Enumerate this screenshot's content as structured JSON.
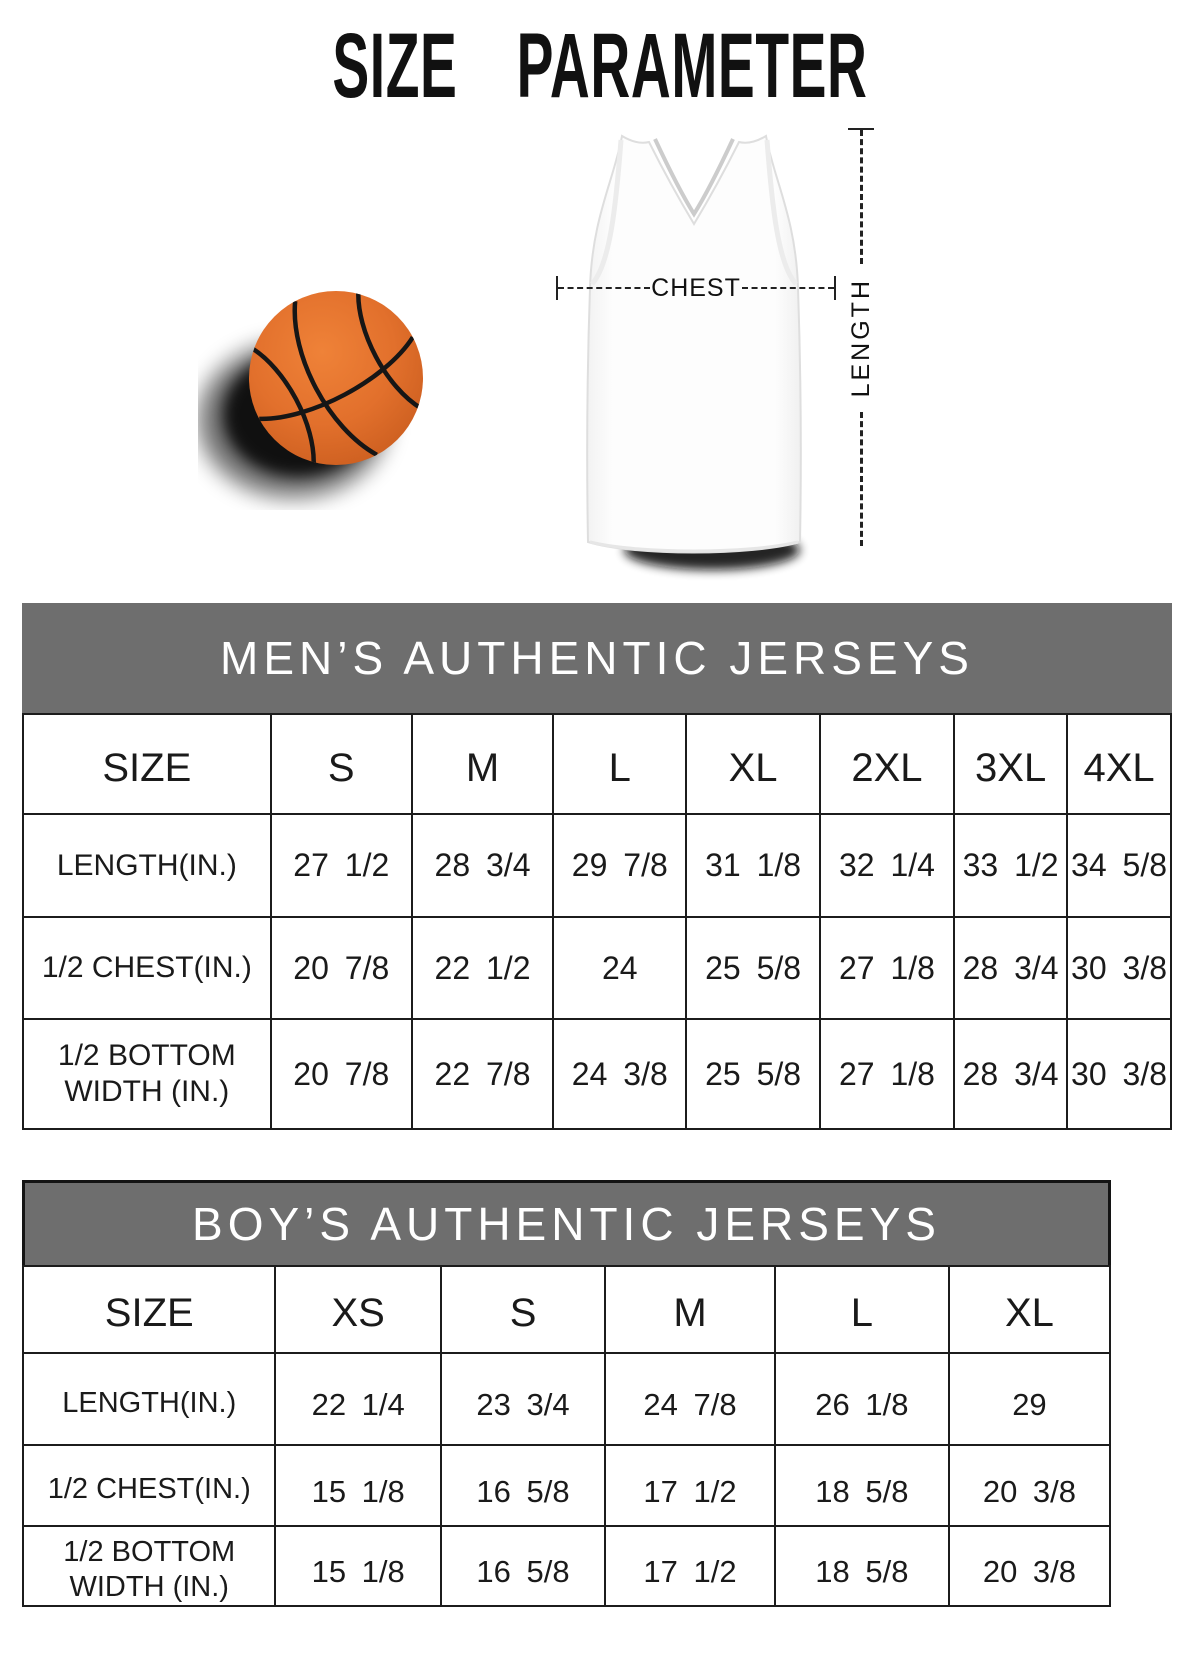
{
  "title": "SIZE PARAMETER",
  "diagram": {
    "chest_label": "CHEST",
    "length_label": "LENGTH"
  },
  "colors": {
    "band_background": "#6e6e6e",
    "band_text": "#ffffff",
    "table_border": "#1c1c1c",
    "text": "#1a1a1a",
    "basketball_orange": "#e2702c"
  },
  "tables": [
    {
      "title": "MEN’S AUTHENTIC JERSEYS",
      "header": [
        "SIZE",
        "S",
        "M",
        "L",
        "XL",
        "2XL",
        "3XL",
        "4XL"
      ],
      "rows": [
        {
          "label": "LENGTH(IN.)",
          "values": [
            "27 1/2",
            "28 3/4",
            "29 7/8",
            "31 1/8",
            "32 1/4",
            "33 1/2",
            "34 5/8"
          ]
        },
        {
          "label": "1/2 CHEST(IN.)",
          "values": [
            "20 7/8",
            "22 1/2",
            "24",
            "25 5/8",
            "27 1/8",
            "28 3/4",
            "30 3/8"
          ]
        },
        {
          "label": "1/2 BOTTOM\nWIDTH  (IN.)",
          "values": [
            "20 7/8",
            "22 7/8",
            "24 3/8",
            "25 5/8",
            "27 1/8",
            "28 3/4",
            "30 3/8"
          ]
        }
      ]
    },
    {
      "title": "BOY’S AUTHENTIC JERSEYS",
      "header": [
        "SIZE",
        "XS",
        "S",
        "M",
        "L",
        "XL"
      ],
      "rows": [
        {
          "label": "LENGTH(IN.)",
          "values": [
            "22 1/4",
            "23 3/4",
            "24 7/8",
            "26 1/8",
            "29"
          ]
        },
        {
          "label": "1/2 CHEST(IN.)",
          "values": [
            "15 1/8",
            "16 5/8",
            "17 1/2",
            "18 5/8",
            "20 3/8"
          ]
        },
        {
          "label": "1/2 BOTTOM\nWIDTH  (IN.)",
          "values": [
            "15 1/8",
            "16 5/8",
            "17 1/2",
            "18 5/8",
            "20 3/8"
          ]
        }
      ]
    }
  ]
}
